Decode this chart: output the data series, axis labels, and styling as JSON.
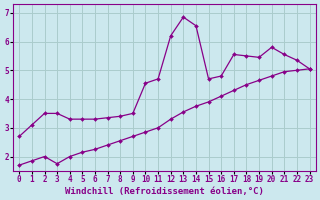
{
  "xlabel": "Windchill (Refroidissement éolien,°C)",
  "background_color": "#cce8ee",
  "grid_color": "#aacccc",
  "line_color": "#880088",
  "xlim": [
    -0.5,
    23.5
  ],
  "ylim": [
    1.5,
    7.3
  ],
  "yticks": [
    2,
    3,
    4,
    5,
    6,
    7
  ],
  "xticks": [
    0,
    1,
    2,
    3,
    4,
    5,
    6,
    7,
    8,
    9,
    10,
    11,
    12,
    13,
    14,
    15,
    16,
    17,
    18,
    19,
    20,
    21,
    22,
    23
  ],
  "line1_x": [
    0,
    1,
    2,
    3,
    4,
    5,
    6,
    7,
    8,
    9,
    10,
    11,
    12,
    13,
    14,
    15,
    16,
    17,
    18,
    19,
    20,
    21,
    22,
    23
  ],
  "line1_y": [
    2.7,
    3.1,
    3.5,
    3.5,
    3.3,
    3.3,
    3.3,
    3.35,
    3.4,
    3.5,
    4.55,
    4.7,
    6.2,
    6.85,
    6.55,
    4.7,
    4.8,
    5.55,
    5.5,
    5.45,
    5.8,
    5.55,
    5.35,
    5.05
  ],
  "line2_x": [
    0,
    1,
    2,
    3,
    4,
    5,
    6,
    7,
    8,
    9,
    10,
    11,
    12,
    13,
    14,
    15,
    16,
    17,
    18,
    19,
    20,
    21,
    22,
    23
  ],
  "line2_y": [
    1.7,
    1.85,
    2.0,
    1.75,
    2.0,
    2.15,
    2.25,
    2.4,
    2.55,
    2.7,
    2.85,
    3.0,
    3.3,
    3.55,
    3.75,
    3.9,
    4.1,
    4.3,
    4.5,
    4.65,
    4.8,
    4.95,
    5.0,
    5.05
  ],
  "tick_fontsize": 5.5,
  "xlabel_fontsize": 6.5
}
